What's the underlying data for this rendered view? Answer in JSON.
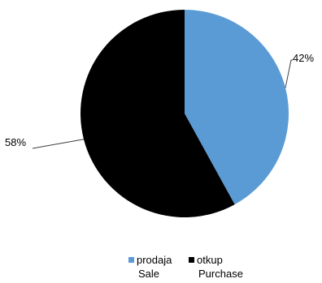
{
  "chart_data": {
    "type": "pie",
    "start_angle_deg": 90,
    "direction": "clockwise",
    "slices": [
      {
        "value": 42,
        "label": "42%",
        "legend_line1": "prodaja",
        "legend_line2": "Sale",
        "color": "#5b9bd5"
      },
      {
        "value": 58,
        "label": "58%",
        "legend_line1": "otkup",
        "legend_line2": "Purchase",
        "color": "#000000"
      }
    ],
    "legend_position": "bottom"
  }
}
